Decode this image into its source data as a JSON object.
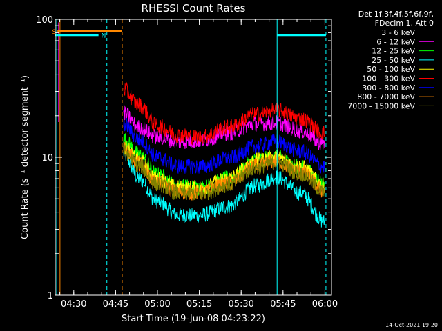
{
  "chart_data": {
    "type": "line",
    "title": "RHESSI Count Rates",
    "xlabel": "Start Time (19-Jun-08 04:23:22)",
    "ylabel": "Count Rate (s⁻¹ detector segment⁻¹)",
    "yscale": "log",
    "ylim": [
      1,
      100
    ],
    "xlim_minutes": [
      0,
      99
    ],
    "x_ticks": [
      {
        "label": "04:30",
        "t": 6.63
      },
      {
        "label": "04:45",
        "t": 21.63
      },
      {
        "label": "05:00",
        "t": 36.63
      },
      {
        "label": "05:15",
        "t": 51.63
      },
      {
        "label": "05:30",
        "t": 66.63
      },
      {
        "label": "05:45",
        "t": 81.63
      },
      {
        "label": "06:00",
        "t": 96.63
      }
    ],
    "y_ticks": [
      {
        "label": "1",
        "v": 1
      },
      {
        "label": "10",
        "v": 10
      },
      {
        "label": "100",
        "v": 100
      }
    ],
    "legend_header": [
      "Det 1f,3f,4f,5f,6f,9f,",
      "FDecim 1, Att 0"
    ],
    "legend_placement": "right",
    "series": [
      {
        "name": "3 - 6 keV",
        "color": "#000000",
        "values": [
          14.5,
          10.5,
          7.0,
          6.0,
          5.6,
          6.8,
          9.5,
          10.2,
          8.0,
          6.0
        ]
      },
      {
        "name": "6 - 12 keV",
        "color": "#ff00ff",
        "values": [
          21.0,
          16.5,
          14.0,
          13.0,
          13.2,
          15.0,
          17.5,
          17.8,
          15.5,
          12.5
        ]
      },
      {
        "name": "12 - 25 keV",
        "color": "#00ff00",
        "values": [
          13.5,
          10.5,
          7.5,
          6.2,
          6.0,
          7.0,
          9.5,
          10.0,
          8.5,
          6.5
        ]
      },
      {
        "name": "25 - 50 keV",
        "color": "#00ffff",
        "values": [
          10.5,
          7.0,
          4.8,
          3.8,
          3.8,
          4.4,
          6.2,
          7.2,
          5.5,
          3.4
        ]
      },
      {
        "name": "50 - 100 keV",
        "color": "#ffff00",
        "values": [
          12.0,
          9.5,
          7.0,
          6.0,
          6.0,
          7.0,
          9.5,
          10.0,
          8.5,
          6.2
        ]
      },
      {
        "name": "100 - 300 keV",
        "color": "#ff0000",
        "values": [
          31.0,
          24.0,
          17.0,
          14.5,
          14.0,
          16.5,
          20.5,
          22.0,
          19.0,
          15.0
        ]
      },
      {
        "name": "300 - 800 keV",
        "color": "#0000ff",
        "values": [
          17.5,
          13.5,
          10.0,
          8.6,
          8.5,
          9.8,
          12.0,
          13.0,
          11.0,
          8.5
        ]
      },
      {
        "name": "800 - 7000 keV",
        "color": "#ff8800",
        "values": [
          11.5,
          9.0,
          6.6,
          5.6,
          5.5,
          6.5,
          8.6,
          9.4,
          7.8,
          5.7
        ]
      },
      {
        "name": "7000 - 15000 keV",
        "color": "#808000",
        "values": [
          11.0,
          8.7,
          6.4,
          5.5,
          5.4,
          6.3,
          8.4,
          9.2,
          7.6,
          5.6
        ]
      }
    ],
    "series_x_minutes": [
      24.5,
      30,
      36.5,
      44,
      52,
      62,
      72,
      79,
      88,
      96.5
    ],
    "gaps": [
      {
        "label": "S",
        "color": "#ff8800",
        "start": 0.8,
        "end": 24.0,
        "level": 82
      },
      {
        "label": "N",
        "color": "#00ffff",
        "start": 0.0,
        "end": 15.5,
        "level": 77
      },
      {
        "label": "",
        "color": "#00ffff",
        "start": 79.5,
        "end": 97.0,
        "level": 77
      }
    ],
    "vlines": [
      {
        "t": 1.7,
        "color": "#ff8800",
        "style": "solid"
      },
      {
        "t": 0.5,
        "color": "#00ffff",
        "style": "solid"
      },
      {
        "t": 18.5,
        "color": "#00ffff",
        "style": "dashed"
      },
      {
        "t": 24.0,
        "color": "#ff8800",
        "style": "dashed"
      },
      {
        "t": 79.5,
        "color": "#00ffff",
        "style": "solid"
      },
      {
        "t": 97.0,
        "color": "#00ffff",
        "style": "dashed"
      }
    ]
  },
  "footer": {
    "timestamp": "14-Oct-2021 19:20"
  }
}
